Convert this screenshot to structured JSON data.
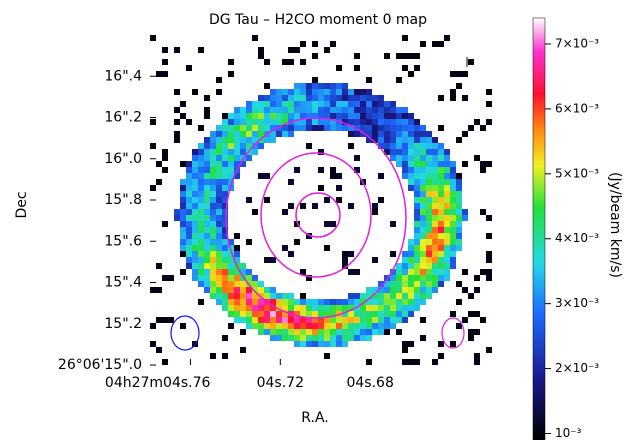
{
  "chart_data": {
    "type": "image",
    "title": "DG Tau – H2CO moment 0 map",
    "x_label": "R.A.",
    "y_label": "Dec",
    "colorbar_label": "(Jy/beam km/s)",
    "xlim": [
      4.778,
      4.628
    ],
    "xticks": [
      {
        "value": 4.76,
        "label": "04h27m04s.76"
      },
      {
        "value": 4.72,
        "label": "04s.72"
      },
      {
        "value": 4.68,
        "label": "04s.68"
      }
    ],
    "ylim": [
      15.0,
      16.6
    ],
    "yticks": [
      {
        "value": 15.0,
        "label": "26°06'15\".0"
      },
      {
        "value": 15.2,
        "label": "15\".2"
      },
      {
        "value": 15.4,
        "label": "15\".4"
      },
      {
        "value": 15.6,
        "label": "15\".6"
      },
      {
        "value": 15.8,
        "label": "15\".8"
      },
      {
        "value": 16.0,
        "label": "16\".0"
      },
      {
        "value": 16.2,
        "label": "16\".2"
      },
      {
        "value": 16.4,
        "label": "16\".4"
      }
    ],
    "clim": [
      0.0009,
      0.0074
    ],
    "cticks": [
      {
        "value": 0.001,
        "label": "10⁻³"
      },
      {
        "value": 0.002,
        "label": "2×10⁻³"
      },
      {
        "value": 0.003,
        "label": "3×10⁻³"
      },
      {
        "value": 0.004,
        "label": "4×10⁻³"
      },
      {
        "value": 0.005,
        "label": "5×10⁻³"
      },
      {
        "value": 0.006,
        "label": "6×10⁻³"
      },
      {
        "value": 0.007,
        "label": "7×10⁻³"
      }
    ]
  }
}
